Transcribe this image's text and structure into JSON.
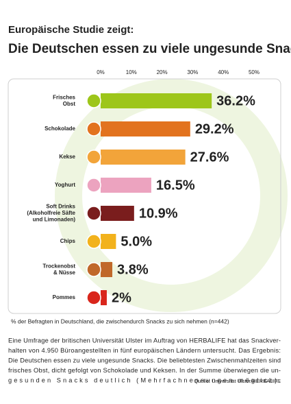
{
  "chart_data": {
    "type": "bar",
    "orientation": "horizontal",
    "subtitle": "Europäische Studie zeigt:",
    "title": "Die Deutschen essen zu viele ungesunde Snacks",
    "categories": [
      "Frisches\nObst",
      "Schokolade",
      "Kekse",
      "Yoghurt",
      "Soft Drinks\n(Alkoholfreie Säfte\nund Limonaden)",
      "Chips",
      "Trockenobst\n& Nüsse",
      "Pommes"
    ],
    "values": [
      36.2,
      29.2,
      27.6,
      16.5,
      10.9,
      5.0,
      3.8,
      2
    ],
    "value_labels": [
      "36.2%",
      "29.2%",
      "27.6%",
      "16.5%",
      "10.9%",
      "5.0%",
      "3.8%",
      "2%"
    ],
    "colors": [
      "#9dc61a",
      "#e2731f",
      "#f2a43a",
      "#eca3bf",
      "#7a1d1d",
      "#f2b21c",
      "#c0682a",
      "#d9261c"
    ],
    "xlim": [
      0,
      50
    ],
    "xticks": [
      {
        "value": 0,
        "label": "0%"
      },
      {
        "value": 10,
        "label": "10%"
      },
      {
        "value": 20,
        "label": "20%"
      },
      {
        "value": 30,
        "label": "30%"
      },
      {
        "value": 40,
        "label": "40%"
      },
      {
        "value": 50,
        "label": "50%"
      }
    ],
    "grid": false,
    "footnote": "% der Befragten in Deutschland, die zwischendurch Snacks zu sich nehmen (n=442)",
    "body": [
      "Eine Umfrage der britischen Universität Ulster im Auftrag von HERBALIFE hat das Snackver-",
      "halten von 4.950 Büroangestellten in fünf europäischen Ländern untersucht. Das Ergebnis:",
      "Die Deutschen essen zu viele ungesunde Snacks. Die beliebtesten Zwischenmahlzeiten sind",
      "frisches Obst, dicht gefolgt von Schokolade und Keksen. In der Summe überwiegen die un-",
      "gesunden Snacks deutlich (Mehrfachnennungen möglich)."
    ],
    "source": "Quelle: Universität Ulster/HERBALIFE"
  }
}
